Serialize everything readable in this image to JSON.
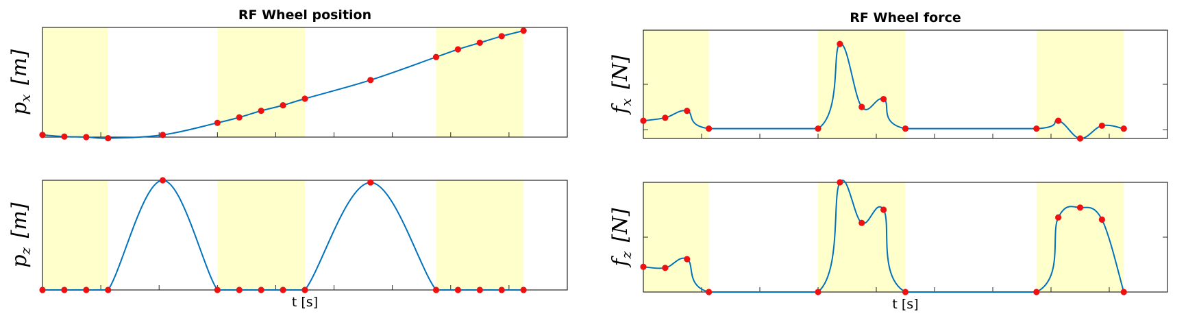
{
  "colors": {
    "line": "#0072bd",
    "marker": "#ee1111",
    "band": "#ffffcc",
    "axes": "#262626"
  },
  "chart_data": [
    {
      "type": "line",
      "title": "RF Wheel position",
      "xlabel": "",
      "ylabel": "p_x [m]",
      "xlim": [
        0,
        12
      ],
      "ylim": [
        0,
        1
      ],
      "stance_bands": [
        [
          0,
          1.5
        ],
        [
          4,
          6
        ],
        [
          9,
          11
        ]
      ],
      "x": [
        0,
        0.5,
        1,
        1.5,
        2.75,
        4,
        4.5,
        5,
        5.5,
        6,
        7.5,
        9,
        9.5,
        10,
        10.5,
        11
      ],
      "values": [
        0.02,
        0.005,
        0,
        -0.01,
        0.02,
        0.13,
        0.18,
        0.24,
        0.29,
        0.35,
        0.52,
        0.73,
        0.8,
        0.86,
        0.92,
        0.97
      ],
      "grid": false
    },
    {
      "type": "line",
      "title": "",
      "xlabel": "t [s]",
      "ylabel": "p_z [m]",
      "xlim": [
        0,
        12
      ],
      "ylim": [
        0,
        1
      ],
      "stance_bands": [
        [
          0,
          1.5
        ],
        [
          4,
          6
        ],
        [
          9,
          11
        ]
      ],
      "x": [
        0,
        0.5,
        1,
        1.5,
        2.75,
        4,
        4.5,
        5,
        5.5,
        6,
        7.5,
        9,
        9.5,
        10,
        10.5,
        11
      ],
      "values": [
        0,
        0,
        0,
        0,
        1,
        0,
        0,
        0,
        0,
        0,
        0.98,
        0,
        0,
        0,
        0,
        0
      ],
      "grid": false
    },
    {
      "type": "line",
      "title": "RF Wheel force",
      "xlabel": "",
      "ylabel": "f_x [N]",
      "xlim": [
        0,
        12
      ],
      "ylim": [
        -0.1,
        1
      ],
      "stance_bands": [
        [
          0,
          1.5
        ],
        [
          4,
          6
        ],
        [
          9,
          11
        ]
      ],
      "x": [
        0,
        0.5,
        1,
        1.5,
        4,
        4.5,
        5,
        5.5,
        6,
        9,
        9.5,
        10,
        10.5,
        11
      ],
      "values": [
        0.08,
        0.11,
        0.18,
        0,
        0,
        0.86,
        0.22,
        0.3,
        0,
        0,
        0.08,
        -0.1,
        0.03,
        0
      ],
      "grid": false
    },
    {
      "type": "line",
      "title": "",
      "xlabel": "t [s]",
      "ylabel": "f_z [N]",
      "xlim": [
        0,
        12
      ],
      "ylim": [
        0,
        1
      ],
      "stance_bands": [
        [
          0,
          1.5
        ],
        [
          4,
          6
        ],
        [
          9,
          11
        ]
      ],
      "x": [
        0,
        0.5,
        1,
        1.5,
        4,
        4.5,
        5,
        5.5,
        6,
        9,
        9.5,
        10,
        10.5,
        11
      ],
      "values": [
        0.23,
        0.22,
        0.3,
        0,
        0,
        1,
        0.63,
        0.75,
        0,
        0,
        0.68,
        0.77,
        0.66,
        0
      ],
      "grid": false
    }
  ]
}
